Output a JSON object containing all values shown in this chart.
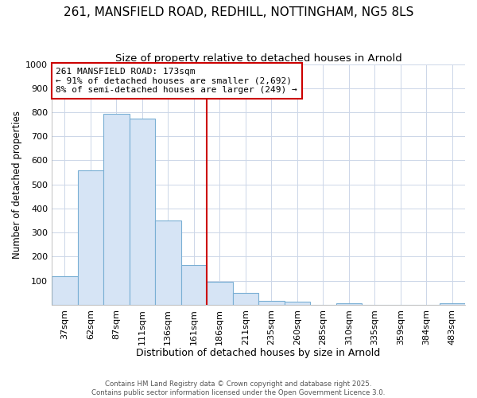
{
  "title1": "261, MANSFIELD ROAD, REDHILL, NOTTINGHAM, NG5 8LS",
  "title2": "Size of property relative to detached houses in Arnold",
  "xlabel": "Distribution of detached houses by size in Arnold",
  "ylabel": "Number of detached properties",
  "categories": [
    "37sqm",
    "62sqm",
    "87sqm",
    "111sqm",
    "136sqm",
    "161sqm",
    "186sqm",
    "211sqm",
    "235sqm",
    "260sqm",
    "285sqm",
    "310sqm",
    "335sqm",
    "359sqm",
    "384sqm",
    "483sqm"
  ],
  "values": [
    120,
    560,
    795,
    775,
    350,
    165,
    95,
    50,
    18,
    12,
    0,
    8,
    0,
    0,
    0,
    8
  ],
  "bar_color": "#d6e4f5",
  "bar_edge_color": "#7aafd4",
  "annotation_line1": "261 MANSFIELD ROAD: 173sqm",
  "annotation_line2": "← 91% of detached houses are smaller (2,692)",
  "annotation_line3": "8% of semi-detached houses are larger (249) →",
  "annotation_box_color": "#ffffff",
  "annotation_box_edge": "#cc0000",
  "red_line_x": 5.5,
  "ylim": [
    0,
    1000
  ],
  "yticks": [
    0,
    100,
    200,
    300,
    400,
    500,
    600,
    700,
    800,
    900,
    1000
  ],
  "grid_color": "#ccd6e8",
  "background_color": "#ffffff",
  "footer_text": "Contains HM Land Registry data © Crown copyright and database right 2025.\nContains public sector information licensed under the Open Government Licence 3.0.",
  "title1_fontsize": 11,
  "title2_fontsize": 9.5,
  "xlabel_fontsize": 9,
  "ylabel_fontsize": 8.5,
  "tick_fontsize": 8,
  "annot_fontsize": 8
}
